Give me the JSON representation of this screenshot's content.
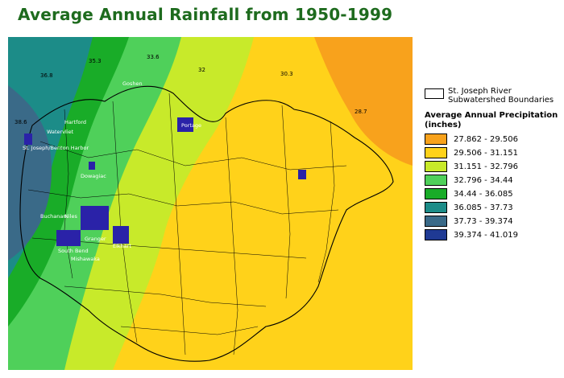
{
  "title": "Average Annual Rainfall from 1950-1999",
  "legend": {
    "boundary_label": "St. Joseph  River Subwatershed Boundaries",
    "precip_title": "Average Annual Precipitation (inches)",
    "classes": [
      {
        "label": "27.862 - 29.506",
        "color": "#f8a21c"
      },
      {
        "label": "29.506 - 31.151",
        "color": "#ffd21a"
      },
      {
        "label": "31.151 - 32.796",
        "color": "#c8ea2a"
      },
      {
        "label": "32.796 - 34.44",
        "color": "#4fd05a"
      },
      {
        "label": "34.44 - 36.085",
        "color": "#19ac28"
      },
      {
        "label": "36.085 - 37.73",
        "color": "#1c8c88"
      },
      {
        "label": "37.73 - 39.374",
        "color": "#3a6a88"
      },
      {
        "label": "39.374 - 41.019",
        "color": "#1f3a94"
      }
    ]
  },
  "isohyets": [
    {
      "text": "36.8"
    },
    {
      "text": "35.3"
    },
    {
      "text": "33.6"
    },
    {
      "text": "32"
    },
    {
      "text": "30.3"
    },
    {
      "text": "28.7"
    },
    {
      "text": "38.6"
    }
  ],
  "places": [
    {
      "text": "Hartford"
    },
    {
      "text": "Watervliet"
    },
    {
      "text": "St. Joseph/Benton Harbor"
    },
    {
      "text": "Dowagiac"
    },
    {
      "text": "Buchanan"
    },
    {
      "text": "Niles"
    },
    {
      "text": "South Bend"
    },
    {
      "text": "Mishawaka"
    },
    {
      "text": "Granger"
    },
    {
      "text": "Elkhart"
    },
    {
      "text": "Goshen"
    },
    {
      "text": "Portage"
    }
  ]
}
